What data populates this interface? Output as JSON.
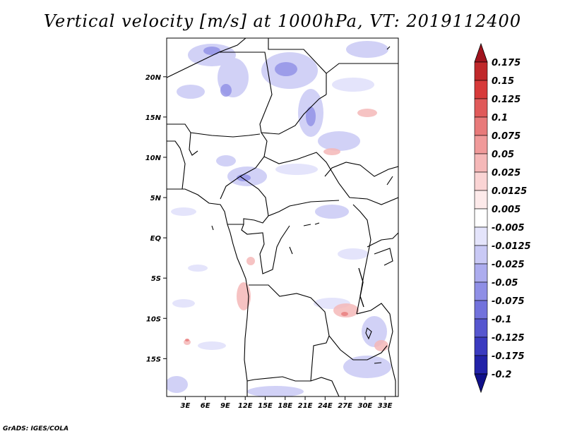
{
  "title": "Vertical velocity [m/s] at 1000hPa, VT: 2019112400",
  "credit": "GrADS: IGES/COLA",
  "map": {
    "lon_labels": [
      "3E",
      "6E",
      "9E",
      "12E",
      "15E",
      "18E",
      "21E",
      "24E",
      "27E",
      "30E",
      "33E"
    ],
    "lon_values": [
      3,
      6,
      9,
      12,
      15,
      18,
      21,
      24,
      27,
      30,
      33
    ],
    "lat_labels": [
      "20N",
      "15N",
      "10N",
      "5N",
      "EQ",
      "5S",
      "10S",
      "15S"
    ],
    "lat_values": [
      20,
      15,
      10,
      5,
      0,
      -5,
      -10,
      -15
    ],
    "lon_range": [
      0.2,
      35.0
    ],
    "lat_range": [
      -19.7,
      24.8
    ]
  },
  "colorbar": {
    "levels": [
      "0.175",
      "0.15",
      "0.125",
      "0.1",
      "0.075",
      "0.05",
      "0.025",
      "0.0125",
      "0.005",
      "-0.005",
      "-0.0125",
      "-0.025",
      "-0.05",
      "-0.075",
      "-0.1",
      "-0.125",
      "-0.175",
      "-0.2"
    ],
    "colors": [
      "#a0141e",
      "#c0282a",
      "#d73a3a",
      "#e05a5a",
      "#e87a7a",
      "#f09a9a",
      "#f5b8b8",
      "#fad4d4",
      "#fdeaea",
      "#ffffff",
      "#e4e4fb",
      "#c9c9f5",
      "#acacee",
      "#8f8fe6",
      "#7272dc",
      "#5656cf",
      "#3a3ac0",
      "#2222a8",
      "#10108a"
    ]
  }
}
